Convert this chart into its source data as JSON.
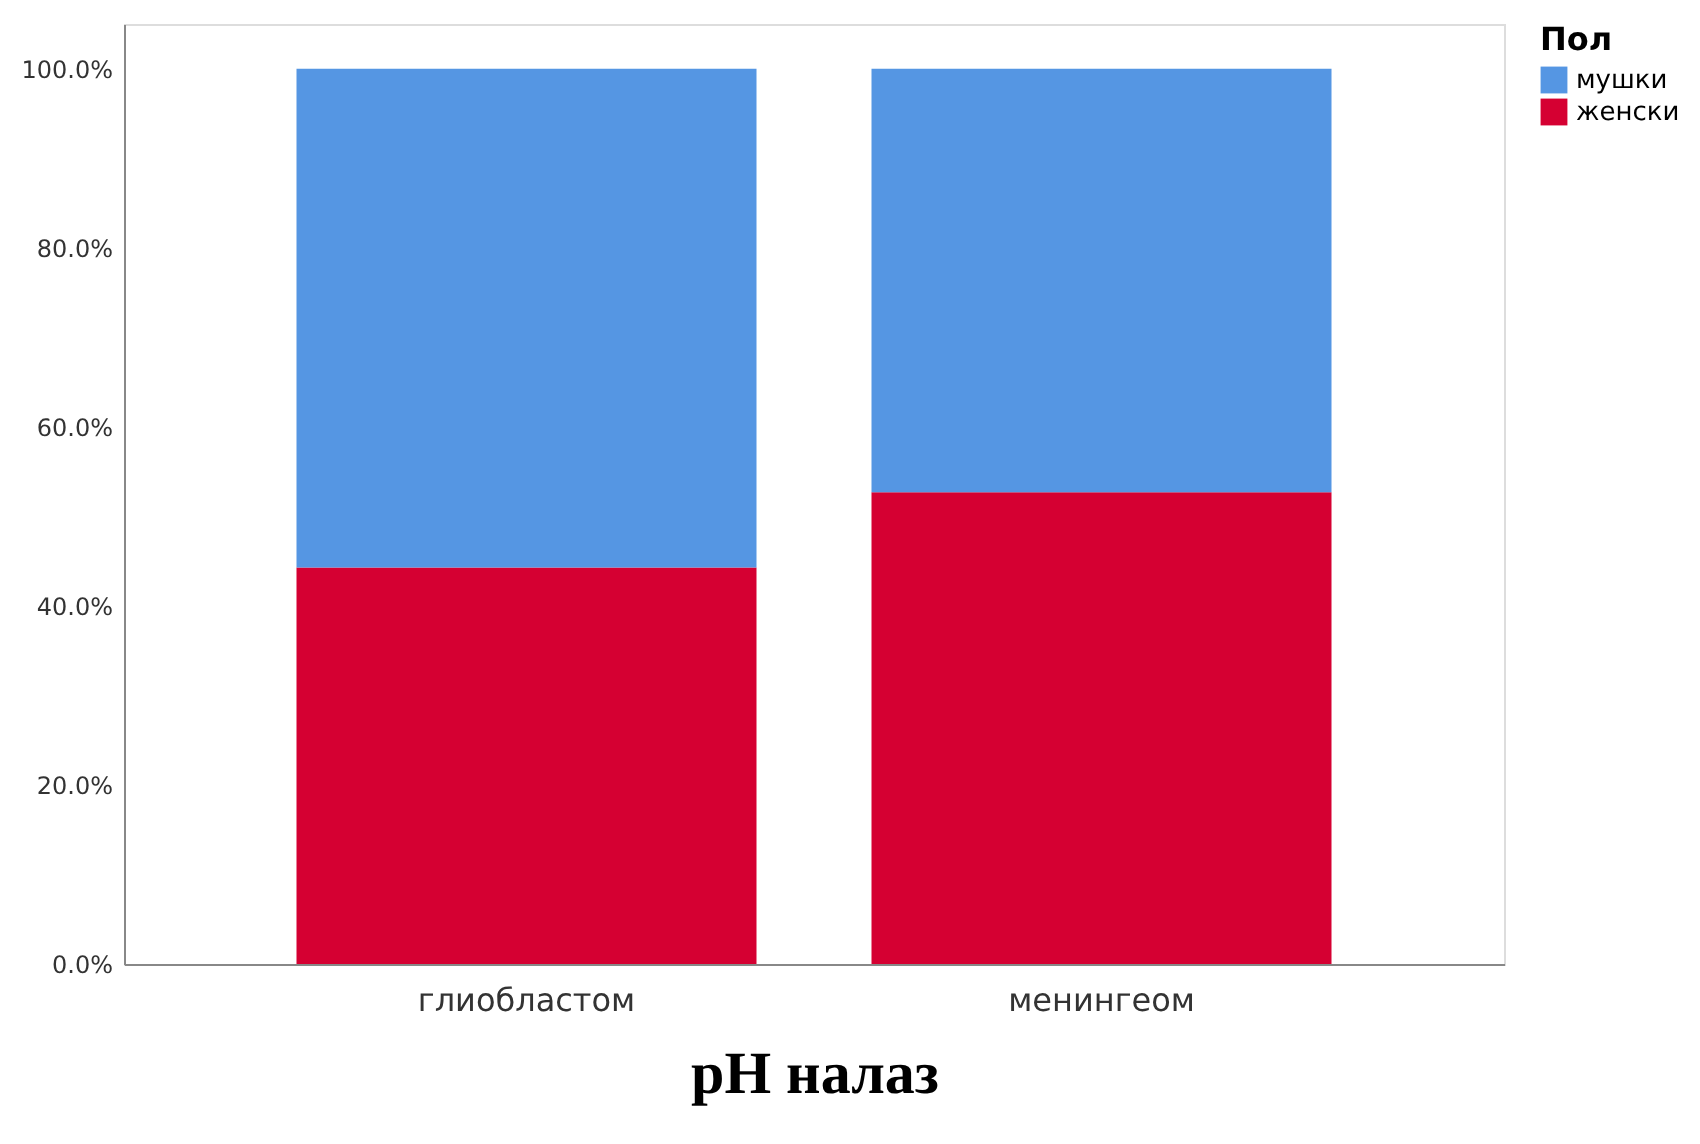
{
  "chart_data": {
    "type": "bar",
    "stacked": true,
    "xlabel": "pH налаз",
    "legend_title": "Пол",
    "legend": "top right",
    "grid": false,
    "categories": [
      "глиобластом",
      "менингеом"
    ],
    "series": [
      {
        "name": "женски",
        "color": "#d50032",
        "values": [
          44.3,
          52.7
        ]
      },
      {
        "name": "мушки",
        "color": "#5596e3",
        "values": [
          55.7,
          47.3
        ]
      }
    ],
    "ylim": [
      0,
      105
    ],
    "yticks": [
      {
        "value": 0,
        "label": "0.0%"
      },
      {
        "value": 20,
        "label": "20.0%"
      },
      {
        "value": 40,
        "label": "40.0%"
      },
      {
        "value": 60,
        "label": "60.0%"
      },
      {
        "value": 80,
        "label": "80.0%"
      },
      {
        "value": 100,
        "label": "100.0%"
      }
    ]
  }
}
